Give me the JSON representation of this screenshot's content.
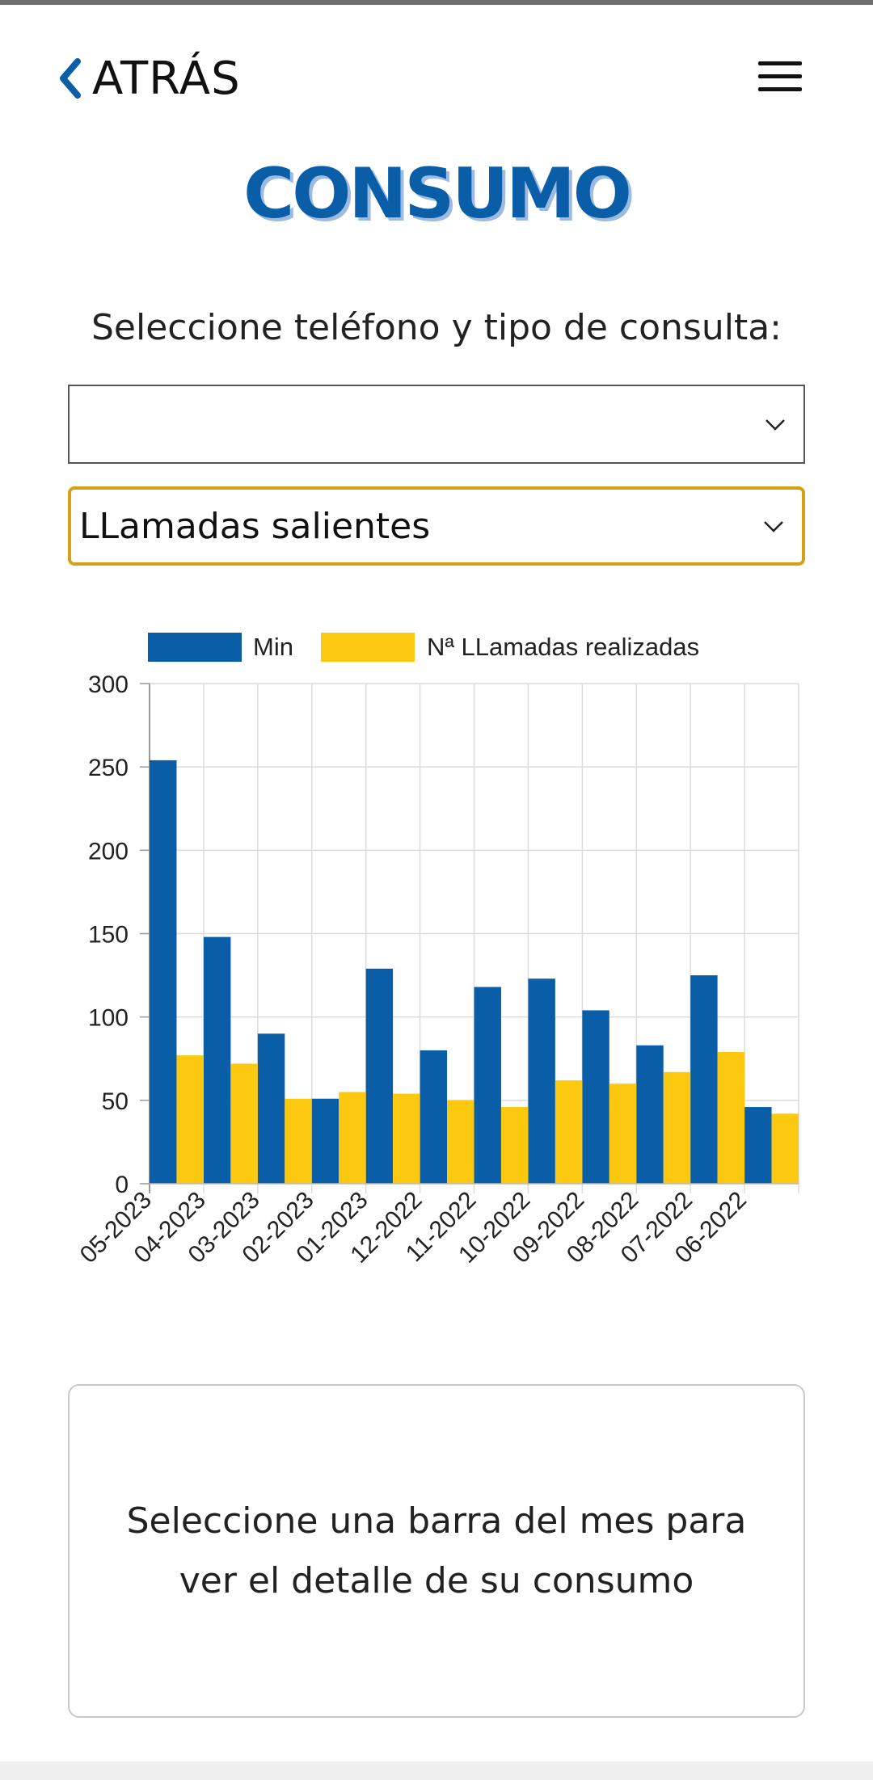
{
  "header": {
    "back_label": "ATRÁS",
    "menu_icon": "hamburger-menu-icon"
  },
  "page": {
    "title": "CONSUMO",
    "subtitle": "Seleccione teléfono y tipo de consulta:"
  },
  "filters": {
    "phone_value": "",
    "type_value": "LLamadas salientes"
  },
  "colors": {
    "primary": "#0a5ea8",
    "accent": "#fcc910",
    "highlight_border": "#d4a017"
  },
  "chart_data": {
    "type": "bar",
    "categories": [
      "05-2023",
      "04-2023",
      "03-2023",
      "02-2023",
      "01-2023",
      "12-2022",
      "11-2022",
      "10-2022",
      "09-2022",
      "08-2022",
      "07-2022",
      "06-2022"
    ],
    "series": [
      {
        "name": "Min",
        "color": "#0a5ea8",
        "values": [
          254,
          148,
          90,
          51,
          129,
          80,
          118,
          123,
          104,
          83,
          125,
          46
        ]
      },
      {
        "name": "Nª LLamadas realizadas",
        "color": "#fcc910",
        "values": [
          77,
          72,
          51,
          55,
          54,
          50,
          46,
          62,
          60,
          67,
          79,
          42
        ]
      }
    ],
    "yticks": [
      0,
      50,
      100,
      150,
      200,
      250,
      300
    ],
    "ylim": [
      0,
      300
    ],
    "grid": true,
    "legend": "top"
  },
  "info": {
    "message": "Seleccione una barra del mes para ver el detalle de su consumo"
  }
}
